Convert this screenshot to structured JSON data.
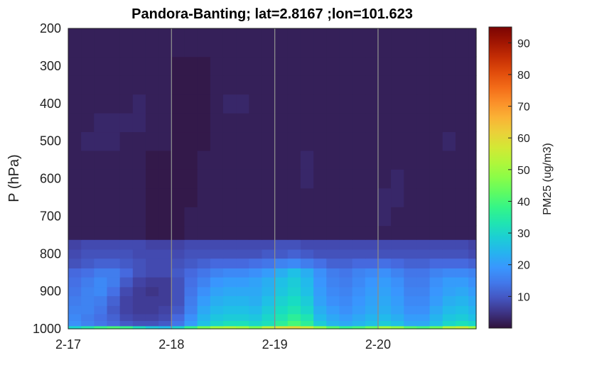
{
  "chart_data": {
    "type": "heatmap",
    "title": "Pandora-Banting; lat=2.8167 ;lon=101.623",
    "ylabel": "P (hPa)",
    "colorbar_label": "PM25 (ug/m3)",
    "x_ticks": [
      "2-17",
      "2-18",
      "2-19",
      "2-20"
    ],
    "x_tick_values_days": [
      0,
      1,
      2,
      3
    ],
    "xlim_days": [
      0,
      3.95
    ],
    "y_ticks": [
      "200",
      "300",
      "400",
      "500",
      "600",
      "700",
      "800",
      "900",
      "1000"
    ],
    "y_tick_values": [
      200,
      300,
      400,
      500,
      600,
      700,
      800,
      900,
      1000
    ],
    "ylim": [
      200,
      1000
    ],
    "y_reversed": true,
    "colorbar_ticks": [
      "10",
      "20",
      "30",
      "40",
      "50",
      "60",
      "70",
      "80",
      "90"
    ],
    "colorbar_tick_values": [
      10,
      20,
      30,
      40,
      50,
      60,
      70,
      80,
      90
    ],
    "clim": [
      0,
      95
    ],
    "colormap": "turbo",
    "vertical_gridlines_at_days": [
      1,
      2,
      3
    ],
    "pressure_levels": [
      1000,
      985,
      970,
      950,
      925,
      900,
      875,
      850,
      825,
      800,
      775,
      750,
      700,
      650,
      600,
      550,
      500,
      450,
      400,
      350,
      300,
      250,
      200
    ],
    "level_boundaries": [
      1000,
      992,
      978,
      960,
      938,
      912,
      888,
      862,
      838,
      812,
      788,
      762,
      725,
      675,
      625,
      575,
      525,
      475,
      425,
      375,
      325,
      275,
      225,
      200
    ],
    "time_steps_hours": 3,
    "pm25": [
      [
        30,
        34,
        38,
        40,
        38,
        32,
        28,
        26,
        30,
        38,
        45,
        50,
        52,
        50,
        46,
        54,
        58,
        60,
        56,
        48,
        42,
        38,
        40,
        44,
        50,
        48,
        42,
        40,
        44,
        52,
        55,
        50
      ],
      [
        18,
        16,
        14,
        12,
        10,
        9,
        9,
        10,
        14,
        20,
        26,
        30,
        32,
        32,
        30,
        32,
        36,
        40,
        36,
        28,
        24,
        22,
        24,
        26,
        28,
        26,
        22,
        22,
        26,
        30,
        32,
        30
      ],
      [
        17,
        15,
        13,
        11,
        8,
        7,
        7,
        8,
        12,
        18,
        24,
        27,
        28,
        28,
        27,
        30,
        33,
        36,
        33,
        25,
        22,
        20,
        22,
        24,
        25,
        23,
        20,
        20,
        24,
        27,
        28,
        26
      ],
      [
        16,
        16,
        14,
        10,
        7,
        6,
        6,
        7,
        10,
        16,
        22,
        25,
        26,
        26,
        25,
        28,
        31,
        33,
        30,
        23,
        20,
        18,
        20,
        22,
        23,
        21,
        18,
        18,
        22,
        25,
        26,
        24
      ],
      [
        15,
        16,
        15,
        11,
        7,
        6,
        6,
        6,
        9,
        15,
        20,
        23,
        24,
        24,
        23,
        26,
        29,
        31,
        28,
        21,
        18,
        17,
        19,
        21,
        22,
        20,
        17,
        17,
        20,
        23,
        24,
        22
      ],
      [
        14,
        16,
        17,
        13,
        8,
        6,
        5,
        6,
        9,
        14,
        18,
        21,
        22,
        22,
        22,
        24,
        27,
        29,
        26,
        20,
        17,
        16,
        18,
        20,
        21,
        19,
        16,
        16,
        19,
        21,
        22,
        20
      ],
      [
        13,
        15,
        17,
        15,
        10,
        7,
        6,
        6,
        9,
        13,
        16,
        19,
        20,
        20,
        21,
        23,
        26,
        28,
        25,
        19,
        16,
        15,
        17,
        19,
        20,
        18,
        15,
        15,
        18,
        20,
        20,
        18
      ],
      [
        12,
        13,
        15,
        15,
        12,
        9,
        8,
        8,
        10,
        12,
        14,
        16,
        17,
        17,
        18,
        20,
        23,
        26,
        23,
        18,
        15,
        14,
        16,
        17,
        18,
        16,
        14,
        14,
        16,
        17,
        17,
        16
      ],
      [
        9,
        10,
        11,
        11,
        10,
        9,
        8,
        8,
        9,
        10,
        11,
        12,
        12,
        12,
        13,
        14,
        16,
        17,
        15,
        13,
        11,
        11,
        12,
        12,
        13,
        12,
        11,
        11,
        12,
        12,
        12,
        11
      ],
      [
        8,
        9,
        9,
        9,
        9,
        8,
        8,
        8,
        8,
        9,
        9,
        9,
        9,
        9,
        9,
        10,
        10,
        11,
        10,
        9,
        9,
        9,
        9,
        9,
        9,
        9,
        9,
        9,
        9,
        9,
        9,
        8
      ],
      [
        7,
        8,
        8,
        8,
        8,
        8,
        7,
        7,
        7,
        8,
        8,
        8,
        8,
        8,
        8,
        8,
        9,
        9,
        8,
        8,
        8,
        8,
        8,
        8,
        8,
        8,
        8,
        8,
        8,
        8,
        8,
        7
      ],
      [
        2,
        2,
        2,
        2,
        2,
        2,
        1,
        1,
        1,
        2,
        2,
        2,
        2,
        2,
        2,
        2,
        2,
        2,
        2,
        2,
        2,
        2,
        2,
        2,
        2,
        2,
        2,
        2,
        2,
        2,
        2,
        2
      ],
      [
        2,
        2,
        2,
        2,
        2,
        2,
        1,
        1,
        1,
        2,
        2,
        2,
        2,
        2,
        2,
        2,
        2,
        2,
        2,
        2,
        2,
        2,
        2,
        2,
        3,
        2,
        2,
        2,
        2,
        2,
        2,
        2
      ],
      [
        2,
        2,
        2,
        2,
        2,
        2,
        1,
        1,
        1,
        1,
        2,
        2,
        2,
        2,
        2,
        2,
        2,
        2,
        2,
        2,
        2,
        2,
        2,
        2,
        3,
        3,
        2,
        2,
        2,
        2,
        2,
        2
      ],
      [
        2,
        2,
        2,
        2,
        2,
        2,
        1,
        1,
        1,
        1,
        2,
        2,
        2,
        2,
        2,
        2,
        2,
        2,
        3,
        2,
        2,
        2,
        2,
        2,
        2,
        3,
        2,
        2,
        2,
        2,
        2,
        2
      ],
      [
        2,
        2,
        2,
        2,
        2,
        2,
        1,
        1,
        1,
        1,
        2,
        2,
        2,
        2,
        2,
        2,
        2,
        2,
        3,
        2,
        2,
        2,
        2,
        2,
        2,
        2,
        2,
        2,
        2,
        2,
        2,
        2
      ],
      [
        2,
        3,
        3,
        3,
        2,
        2,
        2,
        2,
        1,
        1,
        1,
        2,
        2,
        2,
        2,
        2,
        2,
        2,
        2,
        2,
        2,
        2,
        2,
        2,
        2,
        2,
        2,
        2,
        2,
        3,
        2,
        2
      ],
      [
        2,
        2,
        3,
        3,
        3,
        3,
        2,
        2,
        1,
        1,
        1,
        2,
        2,
        2,
        2,
        2,
        2,
        2,
        2,
        2,
        2,
        2,
        2,
        2,
        2,
        2,
        2,
        2,
        2,
        2,
        2,
        2
      ],
      [
        2,
        2,
        2,
        2,
        2,
        3,
        2,
        2,
        1,
        1,
        1,
        2,
        3,
        3,
        2,
        2,
        2,
        2,
        2,
        2,
        2,
        2,
        2,
        2,
        2,
        2,
        2,
        2,
        2,
        2,
        2,
        2
      ],
      [
        2,
        2,
        2,
        2,
        2,
        2,
        2,
        2,
        1,
        1,
        1,
        2,
        2,
        2,
        2,
        2,
        2,
        2,
        2,
        2,
        2,
        2,
        2,
        2,
        2,
        2,
        2,
        2,
        2,
        2,
        2,
        2
      ],
      [
        2,
        2,
        2,
        2,
        2,
        2,
        2,
        2,
        1,
        1,
        1,
        2,
        2,
        2,
        2,
        2,
        2,
        2,
        2,
        2,
        2,
        2,
        2,
        2,
        2,
        2,
        2,
        2,
        2,
        2,
        2,
        2
      ],
      [
        2,
        2,
        2,
        2,
        2,
        2,
        2,
        2,
        2,
        2,
        2,
        2,
        2,
        2,
        2,
        2,
        2,
        2,
        2,
        2,
        2,
        2,
        2,
        2,
        2,
        2,
        2,
        2,
        2,
        2,
        2,
        2
      ],
      [
        2,
        2,
        2,
        2,
        2,
        2,
        2,
        2,
        2,
        2,
        2,
        2,
        2,
        2,
        2,
        2,
        2,
        2,
        2,
        2,
        2,
        2,
        2,
        2,
        2,
        2,
        2,
        2,
        2,
        2,
        2,
        2
      ]
    ]
  }
}
